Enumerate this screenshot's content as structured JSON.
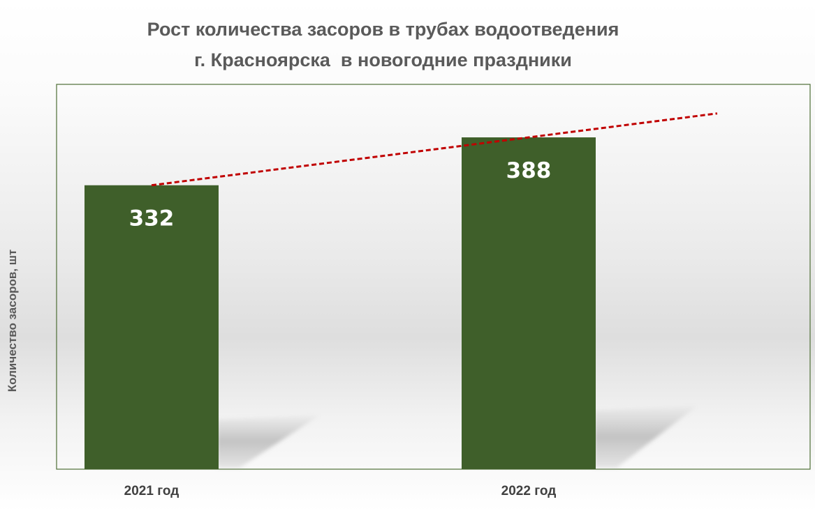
{
  "chart_data": {
    "type": "bar",
    "title": [
      "Рост количества засоров в трубах водоотведения",
      "г. Красноярска  в новогодние праздники"
    ],
    "xlabel": "",
    "ylabel": "Количество засоров, шт",
    "categories": [
      "2021 год",
      "2022 год"
    ],
    "values": [
      332,
      388
    ],
    "data_labels": [
      "332",
      "388"
    ],
    "ylim": [
      0,
      450
    ],
    "grid": false,
    "legend": "none",
    "trendline": {
      "type": "linear",
      "style": "dashed",
      "color": "#c00000",
      "extends_forward": true
    },
    "colors": {
      "bar": "#3f5f2a",
      "plot_border": "#4e6e36",
      "trendline": "#c00000",
      "title": "#5a5a5a"
    }
  }
}
